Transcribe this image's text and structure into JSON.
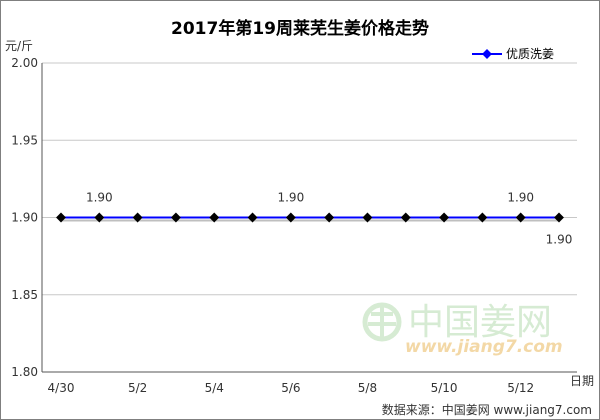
{
  "chart_data": {
    "type": "line",
    "title": "2017年第19周莱芜生姜价格走势",
    "ylabel": "元/斤",
    "xlabel": "日期",
    "ylim": [
      1.8,
      2.0
    ],
    "yticks": [
      "1.80",
      "1.85",
      "1.90",
      "1.95",
      "2.00"
    ],
    "categories": [
      "4/30",
      "5/1",
      "5/2",
      "5/3",
      "5/4",
      "5/5",
      "5/6",
      "5/7",
      "5/8",
      "5/9",
      "5/10",
      "5/11",
      "5/12",
      "5/13"
    ],
    "xtick_labels": [
      "4/30",
      "5/2",
      "5/4",
      "5/6",
      "5/8",
      "5/10",
      "5/12"
    ],
    "series": [
      {
        "name": "优质洗姜",
        "color": "#0000ff",
        "marker_color": "#000000",
        "values": [
          1.9,
          1.9,
          1.9,
          1.9,
          1.9,
          1.9,
          1.9,
          1.9,
          1.9,
          1.9,
          1.9,
          1.9,
          1.9,
          1.9
        ]
      }
    ],
    "data_labels": [
      {
        "index": 1,
        "text": "1.90",
        "side": "above"
      },
      {
        "index": 6,
        "text": "1.90",
        "side": "above"
      },
      {
        "index": 12,
        "text": "1.90",
        "side": "above"
      },
      {
        "index": 13,
        "text": "1.90",
        "side": "below"
      }
    ],
    "grid": "horizontal",
    "legend": "top-right"
  },
  "watermark": {
    "text_cn": "中国姜网",
    "url": "www.jiang7.com"
  },
  "source": "数据来源：中国姜网  www.jiang7.com"
}
